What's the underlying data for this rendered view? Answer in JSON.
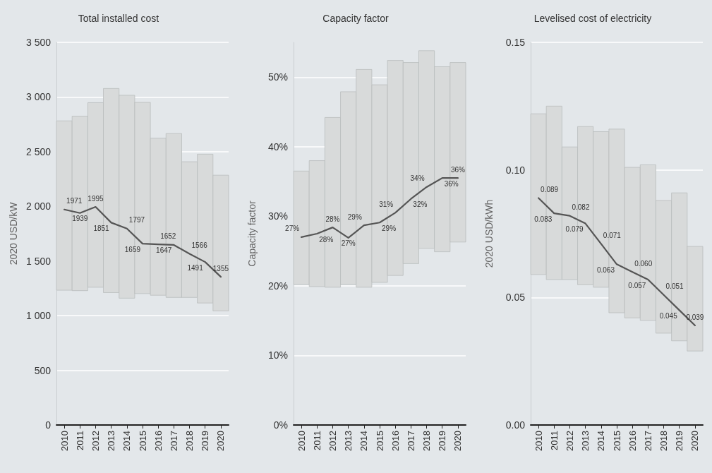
{
  "chart_data": [
    {
      "type": "bar",
      "title": "Total installed cost",
      "ylabel": "2020 USD/kW",
      "categories": [
        "2010",
        "2011",
        "2012",
        "2013",
        "2014",
        "2015",
        "2016",
        "2017",
        "2018",
        "2019",
        "2020"
      ],
      "ylim": [
        0,
        3500
      ],
      "yticks": [
        0,
        500,
        {
          "value": 1000,
          "label": "1 000"
        },
        {
          "value": 1500,
          "label": "1 500"
        },
        {
          "value": 2000,
          "label": "2 000"
        },
        {
          "value": 2500,
          "label": "2 500"
        },
        {
          "value": 3000,
          "label": "3 000"
        },
        {
          "value": 3500,
          "label": "3 500"
        }
      ],
      "grid": "y",
      "series": [
        {
          "color": "#d8dada",
          "base": [
            1233,
            1229,
            1260,
            1211,
            1160,
            1202,
            1187,
            1167,
            1167,
            1116,
            1044
          ],
          "values": [
            1549,
            1596,
            1688,
            1867,
            1856,
            1749,
            1436,
            1499,
            1241,
            1361,
            1241
          ]
        },
        {
          "type": "line",
          "color": "#555555",
          "marker": "none",
          "line_style": "solid",
          "values": [
            1971,
            1939,
            1995,
            1851,
            1797,
            1659,
            1652,
            1647,
            1566,
            1491,
            1355
          ],
          "value_labels": [
            "1971",
            "1939",
            "1995",
            "1851",
            "1797",
            "1659",
            "1652",
            "1647",
            "1566",
            "1491",
            "1355"
          ]
        }
      ]
    },
    {
      "type": "bar",
      "title": "Capacity factor",
      "ylabel": "Capacity factor",
      "categories": [
        "2010",
        "2011",
        "2012",
        "2013",
        "2014",
        "2015",
        "2016",
        "2017",
        "2018",
        "2019",
        "2020"
      ],
      "ylim": [
        0,
        55
      ],
      "yticks": [
        {
          "value": 0,
          "label": "0%"
        },
        {
          "value": 10,
          "label": "10%"
        },
        {
          "value": 20,
          "label": "20%"
        },
        {
          "value": 30,
          "label": "30%"
        },
        {
          "value": 40,
          "label": "40%"
        },
        {
          "value": 50,
          "label": "50%"
        }
      ],
      "grid": "y",
      "series": [
        {
          "color": "#d8dada",
          "base": [
            20.2,
            19.9,
            19.8,
            20.2,
            19.8,
            20.5,
            21.5,
            23.2,
            25.4,
            24.9,
            26.3
          ],
          "values": [
            16.3,
            18.1,
            24.4,
            27.7,
            31.3,
            28.4,
            30.9,
            28.9,
            28.4,
            26.6,
            25.8
          ]
        },
        {
          "type": "line",
          "color": "#555555",
          "marker": "none",
          "line_style": "solid",
          "values": [
            27.0,
            27.5,
            28.4,
            26.9,
            28.7,
            29.1,
            30.5,
            32.5,
            34.2,
            35.5,
            35.5
          ],
          "value_labels": [
            "27%",
            "28%",
            "28%",
            "27%",
            "29%",
            "29%",
            "31%",
            "32%",
            "34%",
            "36%",
            "36%"
          ]
        }
      ]
    },
    {
      "type": "bar",
      "title": "Levelised cost of electricity",
      "ylabel": "2020 USD/kWh",
      "categories": [
        "2010",
        "2011",
        "2012",
        "2013",
        "2014",
        "2015",
        "2016",
        "2017",
        "2018",
        "2019",
        "2020"
      ],
      "ylim": [
        0,
        0.15
      ],
      "yticks": [
        {
          "value": 0,
          "label": "0.00"
        },
        {
          "value": 0.05,
          "label": "0.05"
        },
        {
          "value": 0.1,
          "label": "0.10"
        },
        {
          "value": 0.15,
          "label": "0.15"
        }
      ],
      "grid": "y",
      "series": [
        {
          "color": "#d8dada",
          "base": [
            0.059,
            0.057,
            0.057,
            0.055,
            0.054,
            0.044,
            0.042,
            0.041,
            0.036,
            0.033,
            0.029
          ],
          "values": [
            0.063,
            0.068,
            0.052,
            0.062,
            0.061,
            0.072,
            0.059,
            0.061,
            0.052,
            0.058,
            0.041
          ]
        },
        {
          "type": "line",
          "color": "#555555",
          "marker": "none",
          "line_style": "solid",
          "values": [
            0.089,
            0.083,
            0.082,
            0.079,
            0.071,
            0.063,
            0.06,
            0.057,
            0.051,
            0.045,
            0.039
          ],
          "value_labels": [
            "0.089",
            "0.083",
            "0.082",
            "0.079",
            "0.071",
            "0.063",
            "0.060",
            "0.057",
            "0.051",
            "0.045",
            "0.039"
          ]
        }
      ]
    }
  ]
}
